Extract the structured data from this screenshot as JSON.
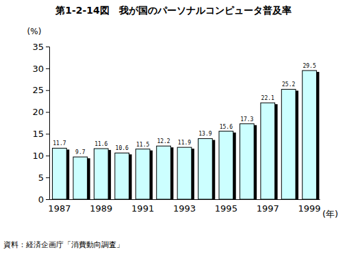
{
  "chart_data": {
    "type": "bar",
    "title": "第1-2-14図　我が国のパーソナルコンピュータ普及率",
    "y_label": "(%)",
    "x_label": "(年)",
    "source": "資料：経済企画庁「消費動向調査」",
    "categories": [
      "1987",
      null,
      "1989",
      null,
      "1991",
      null,
      "1993",
      null,
      "1995",
      null,
      "1997",
      null,
      "1999"
    ],
    "values": [
      11.7,
      9.7,
      11.6,
      10.6,
      11.5,
      12.2,
      11.9,
      13.9,
      15.6,
      17.3,
      22.1,
      25.2,
      29.5
    ],
    "color": "#ccffff",
    "ylim": [
      0,
      35
    ],
    "yticks": [
      0,
      5,
      10,
      15,
      20,
      25,
      30,
      35
    ],
    "grid": false,
    "data_labels": true
  }
}
